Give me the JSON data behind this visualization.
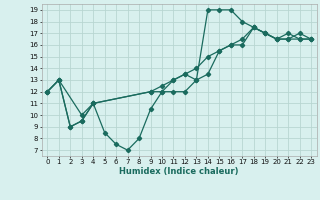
{
  "xlabel": "Humidex (Indice chaleur)",
  "xlim": [
    -0.5,
    23.5
  ],
  "ylim": [
    6.5,
    19.5
  ],
  "xticks": [
    0,
    1,
    2,
    3,
    4,
    5,
    6,
    7,
    8,
    9,
    10,
    11,
    12,
    13,
    14,
    15,
    16,
    17,
    18,
    19,
    20,
    21,
    22,
    23
  ],
  "yticks": [
    7,
    8,
    9,
    10,
    11,
    12,
    13,
    14,
    15,
    16,
    17,
    18,
    19
  ],
  "bg_color": "#d8f0ee",
  "grid_color": "#b8d6d2",
  "line_color": "#1a6b5e",
  "line1_x": [
    0,
    1,
    2,
    3,
    4,
    5,
    6,
    7,
    8,
    9,
    10,
    11,
    12,
    13,
    14,
    15,
    16,
    17,
    18,
    19,
    20,
    21,
    22,
    23
  ],
  "line1_y": [
    12,
    13,
    9,
    9.5,
    11,
    8.5,
    7.5,
    7,
    8,
    10.5,
    12,
    12,
    12,
    13,
    19,
    19,
    19,
    18,
    17.5,
    17,
    16.5,
    16.5,
    17,
    16.5
  ],
  "line2_x": [
    0,
    1,
    2,
    3,
    4,
    9,
    10,
    11,
    12,
    13,
    14,
    15,
    16,
    17,
    18,
    19,
    20,
    21,
    22,
    23
  ],
  "line2_y": [
    12,
    13,
    9,
    9.5,
    11,
    12,
    12.5,
    13,
    13.5,
    13,
    13.5,
    15.5,
    16,
    16,
    17.5,
    17,
    16.5,
    17,
    16.5,
    16.5
  ],
  "line3_x": [
    0,
    1,
    3,
    4,
    9,
    10,
    11,
    12,
    13,
    14,
    15,
    16,
    17,
    18,
    19,
    20,
    21,
    22,
    23
  ],
  "line3_y": [
    12,
    13,
    10,
    11,
    12,
    12,
    13,
    13.5,
    14,
    15,
    15.5,
    16,
    16.5,
    17.5,
    17,
    16.5,
    16.5,
    16.5,
    16.5
  ]
}
